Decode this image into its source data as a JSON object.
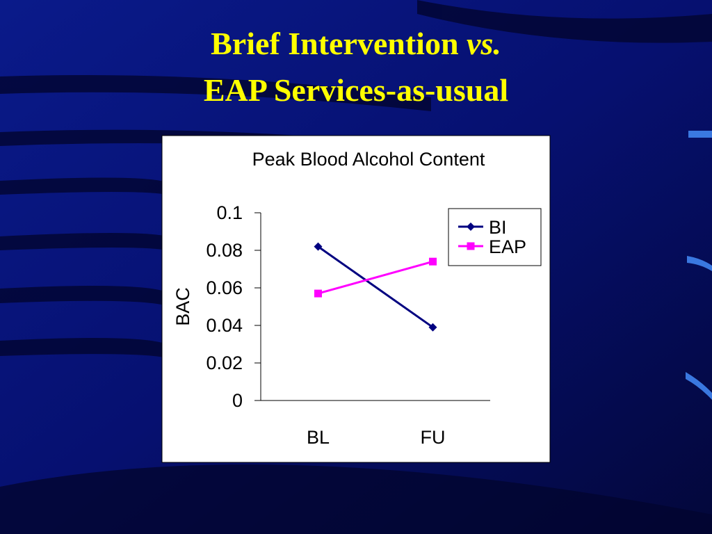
{
  "slide_title": {
    "line1": "Brief Intervention",
    "line1_italic": "vs.",
    "line2": "EAP Services-as-usual"
  },
  "chart_data": {
    "type": "line",
    "title": "Peak Blood Alcohol Content",
    "y_label": "BAC",
    "categories": [
      "BL",
      "FU"
    ],
    "series": [
      {
        "name": "BI",
        "color": "#000080",
        "marker": "diamond",
        "values": [
          0.082,
          0.039
        ]
      },
      {
        "name": "EAP",
        "color": "#ff00ff",
        "marker": "square",
        "values": [
          0.057,
          0.074
        ]
      }
    ],
    "ylim": [
      0,
      0.1
    ],
    "yticks": [
      0,
      0.02,
      0.04,
      0.06,
      0.08,
      0.1
    ],
    "grid": false,
    "legend": "top-right"
  }
}
